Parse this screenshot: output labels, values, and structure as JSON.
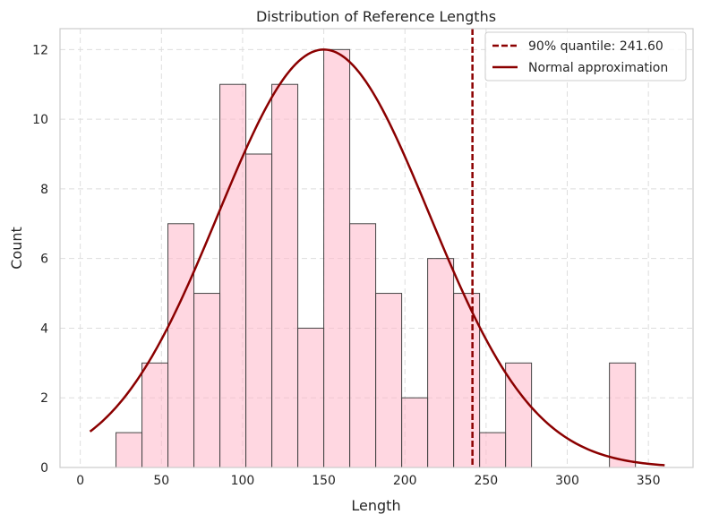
{
  "chart_data": {
    "type": "bar",
    "title": "Distribution of Reference Lengths",
    "xlabel": "Length",
    "ylabel": "Count",
    "xlim": [
      -12.5,
      377.5
    ],
    "ylim": [
      0,
      12.6
    ],
    "xticks": [
      0,
      50,
      100,
      150,
      200,
      250,
      300,
      350
    ],
    "yticks": [
      0,
      2,
      4,
      6,
      8,
      10,
      12
    ],
    "grid": true,
    "legend_position": "upper right",
    "bin_edges": [
      22,
      38,
      54,
      70,
      86,
      102,
      118,
      134,
      150,
      166,
      182,
      198,
      214,
      230,
      246,
      262,
      278,
      294,
      310,
      326,
      342
    ],
    "counts": [
      1,
      3,
      7,
      5,
      11,
      9,
      11,
      4,
      12,
      7,
      5,
      2,
      6,
      5,
      1,
      3,
      0,
      0,
      0,
      3
    ],
    "bar_color": "#ffb6c8",
    "quantile": {
      "label": "90% quantile: 241.60",
      "value": 241.6,
      "color": "#8b0000"
    },
    "normal_curve": {
      "label": "Normal approximation",
      "mean": 150,
      "std": 65,
      "peak": 12,
      "x_start": 6,
      "x_end": 360,
      "color": "#8b0000"
    }
  }
}
